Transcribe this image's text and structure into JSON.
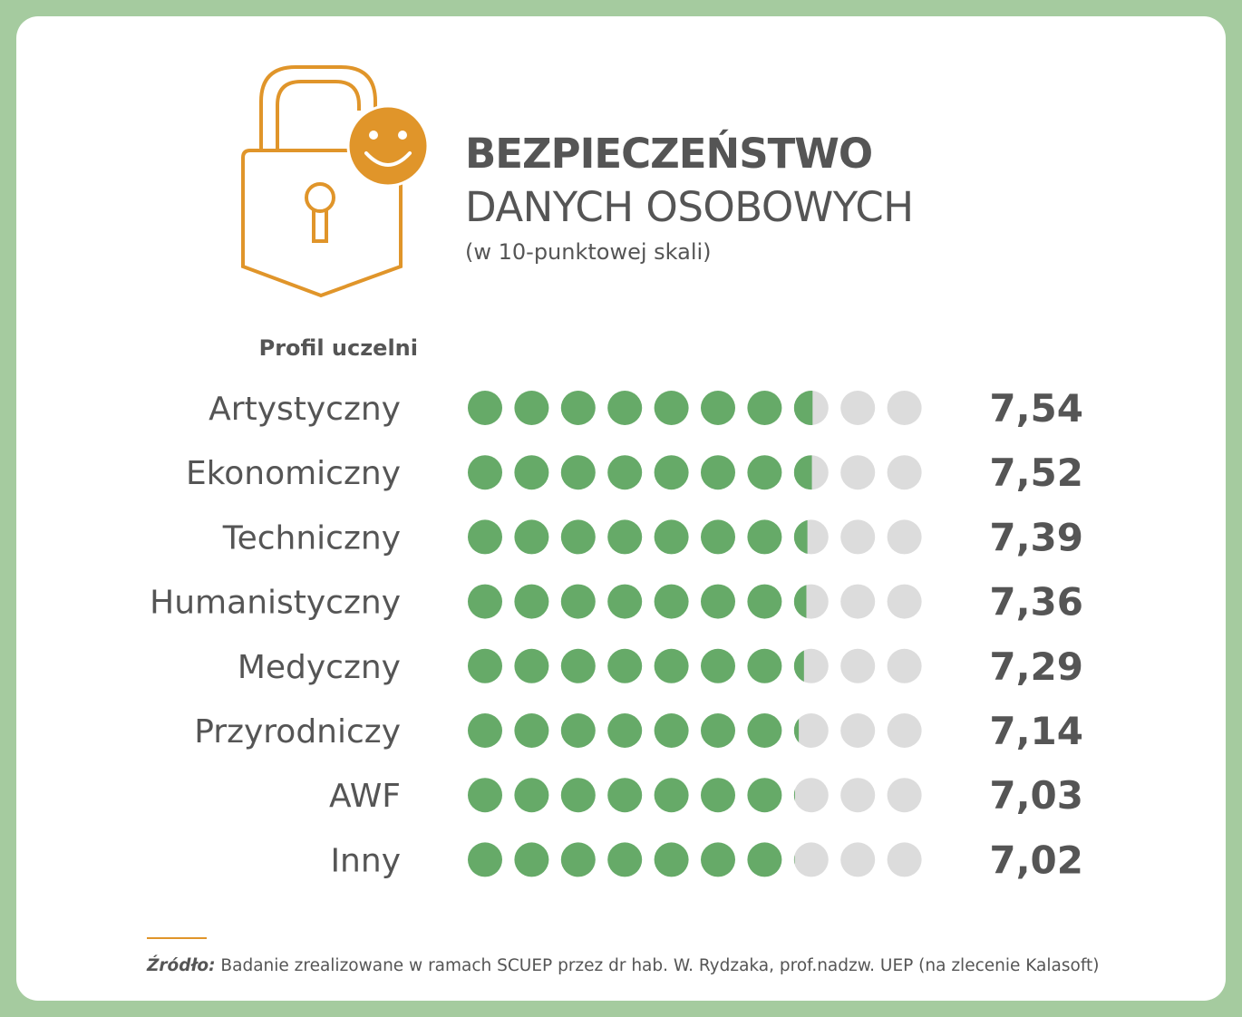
{
  "title": {
    "line1": "BEZPIECZEŃSTWO",
    "line2": "DANYCH OSOBOWYCH",
    "note": "(w 10-punktowej skali)"
  },
  "icon": "padlock-smiley-icon",
  "colors": {
    "background": "#a5cb9f",
    "filled_dot": "#66aa68",
    "empty_dot": "#dcdcdc",
    "accent": "#e0952a",
    "text": "#555555"
  },
  "chart_data": {
    "type": "dot-rating",
    "max": 10,
    "category_header": "Profil uczelni",
    "categories": [
      "Artystyczny",
      "Ekonomiczny",
      "Techniczny",
      "Humanistyczny",
      "Medyczny",
      "Przyrodniczy",
      "AWF",
      "Inny"
    ],
    "values": [
      7.54,
      7.52,
      7.39,
      7.36,
      7.29,
      7.14,
      7.03,
      7.02
    ],
    "value_labels": [
      "7,54",
      "7,52",
      "7,39",
      "7,36",
      "7,29",
      "7,14",
      "7,03",
      "7,02"
    ]
  },
  "footer": {
    "source_label": "Źródło:",
    "source_text": " Badanie zrealizowane w ramach SCUEP przez dr hab. W. Rydzaka, prof.nadzw. UEP (na zlecenie Kalasoft)"
  }
}
